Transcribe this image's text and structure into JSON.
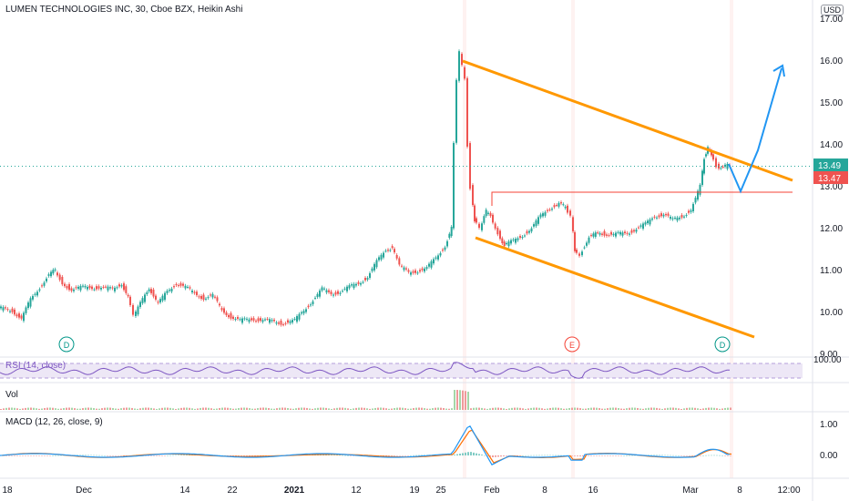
{
  "header": {
    "title": "LUMEN TECHNOLOGIES INC, 30, Cboe BZX, Heikin Ashi",
    "currency": "USD"
  },
  "price_axis": {
    "ticks": [
      "17.00",
      "16.00",
      "15.00",
      "14.00",
      "13.00",
      "12.00",
      "11.00",
      "10.00",
      "9.00"
    ],
    "current_price": "13.49",
    "last_price": "13.47",
    "current_color": "#26a69a",
    "last_color": "#ef5350"
  },
  "time_axis": {
    "ticks": [
      "18",
      "Dec",
      "14",
      "22",
      "2021",
      "12",
      "19",
      "25",
      "Feb",
      "8",
      "16",
      "Mar",
      "8",
      "12:00"
    ]
  },
  "markers": [
    "D",
    "E",
    "D"
  ],
  "rsi": {
    "label": "RSI (14, close)",
    "axis": "100.00"
  },
  "volume": {
    "label": "Vol"
  },
  "macd": {
    "label": "MACD (12, 26, close, 9)",
    "ticks": [
      "1.00",
      "0.00"
    ],
    "macd_color": "#2196f3",
    "signal_color": "#ff6d00"
  },
  "drawings": {
    "channel_color": "#ff9800",
    "resistance_color": "#f44336",
    "projection_color": "#2196f3"
  },
  "chart_data": {
    "type": "candlestick",
    "style": "Heikin Ashi",
    "interval": "30",
    "ylim": [
      9.0,
      17.0
    ],
    "key_points": [
      {
        "x": "18",
        "y": 10.2
      },
      {
        "x": "Dec",
        "y": 10.9
      },
      {
        "x": "14",
        "y": 10.6
      },
      {
        "x": "22",
        "y": 9.8
      },
      {
        "x": "2021",
        "y": 9.85
      },
      {
        "x": "12",
        "y": 10.5
      },
      {
        "x": "19",
        "y": 11.0
      },
      {
        "x": "25",
        "y": 12.0
      },
      {
        "x": "25",
        "y": 16.6
      },
      {
        "x": "Feb",
        "y": 12.2
      },
      {
        "x": "8",
        "y": 12.6
      },
      {
        "x": "16",
        "y": 11.8
      },
      {
        "x": "Mar",
        "y": 12.3
      },
      {
        "x": "Mar",
        "y": 13.9
      },
      {
        "x": "Mar",
        "y": 13.47
      }
    ]
  }
}
